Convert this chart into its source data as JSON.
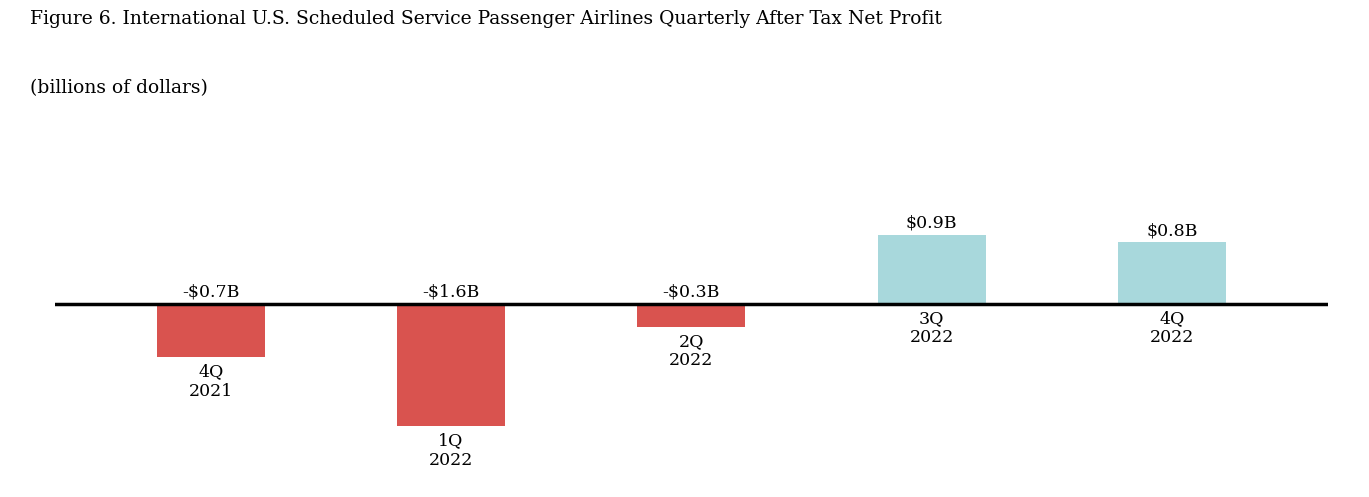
{
  "title_line1": "Figure 6. International U.S. Scheduled Service Passenger Airlines Quarterly After Tax Net Profit",
  "title_line2": "(billions of dollars)",
  "categories": [
    "4Q\n2021",
    "1Q\n2022",
    "2Q\n2022",
    "3Q\n2022",
    "4Q\n2022"
  ],
  "values": [
    -0.7,
    -1.6,
    -0.3,
    0.9,
    0.8
  ],
  "labels": [
    "-$0.7B",
    "-$1.6B",
    "-$0.3B",
    "$0.9B",
    "$0.8B"
  ],
  "bar_colors_negative": "#d9534f",
  "bar_colors_positive": "#a8d8dc",
  "background_color": "#ffffff",
  "ylim": [
    -2.2,
    1.5
  ],
  "bar_width": 0.45,
  "title_fontsize": 13.5,
  "label_fontsize": 12.5,
  "tick_fontsize": 12.5,
  "zeroline_lw": 2.5
}
